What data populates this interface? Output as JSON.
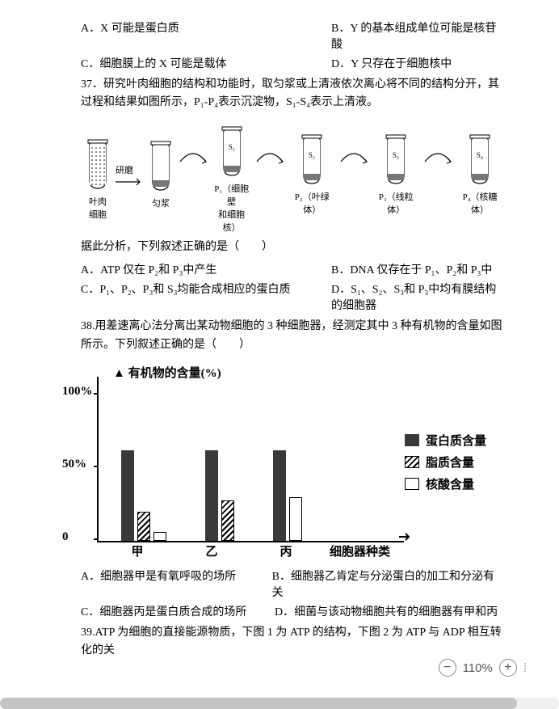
{
  "q36": {
    "optA": "A．X 可能是蛋白质",
    "optB": "B．Y 的基本组成单位可能是核苷酸",
    "optC": "C．细胞膜上的 X 可能是载体",
    "optD": "D．Y 只存在于细胞核中"
  },
  "q37": {
    "text": "37．研究叶肉细胞的结构和功能时，取匀浆或上清液依次离心将不同的结构分开，其过程和结果如图所示，P₁-P₄表示沉淀物，S₁-S₄表示上清液。",
    "diagram": {
      "tubes": [
        {
          "label1": "叶肉",
          "label2": "细胞",
          "s_label": ""
        },
        {
          "label1": "匀浆",
          "label2": "",
          "s_label": ""
        },
        {
          "label1": "P₁（细胞壁",
          "label2": "和细胞核）",
          "s_label": "S₁"
        },
        {
          "label1": "P₂（叶绿体）",
          "label2": "",
          "s_label": "S₂"
        },
        {
          "label1": "P₃（线粒体）",
          "label2": "",
          "s_label": "S₃"
        },
        {
          "label1": "P₄（核糖体）",
          "label2": "",
          "s_label": "S₄"
        }
      ],
      "step1": "研磨"
    },
    "stem2": "据此分析，下列叙述正确的是（　　）",
    "optA": "A．ATP 仅在 P₂和 P₃中产生",
    "optB": "B．DNA 仅存在于 P₁、P₂和 P₃中",
    "optC": "C．P₁、P₂、P₃和 S₃均能合成相应的蛋白质",
    "optD": "D．S₁、S₂、S₃和 P₃中均有膜结构的细胞器"
  },
  "q38": {
    "text": "38.用差速离心法分离出某动物细胞的 3 种细胞器，经测定其中 3 种有机物的含量如图所示。下列叙述正确的是（　　）",
    "chart": {
      "title": "有机物的含量(%)",
      "yticks": [
        {
          "v": 100,
          "label": "100%"
        },
        {
          "v": 50,
          "label": "50%"
        },
        {
          "v": 0,
          "label": "0"
        }
      ],
      "ymax": 100,
      "legend": {
        "protein": "蛋白质含量",
        "lipid": "脂质含量",
        "nucleic": "核酸含量"
      },
      "groups": [
        {
          "name": "甲",
          "protein": 62,
          "lipid": 20,
          "nucleic": 6
        },
        {
          "name": "乙",
          "protein": 62,
          "lipid": 28,
          "nucleic": 0
        },
        {
          "name": "丙",
          "protein": 62,
          "lipid": 0,
          "nucleic": 30
        }
      ],
      "xaxis_label": "细胞器种类",
      "colors": {
        "filled": "#3a3a3a",
        "empty": "#ffffff"
      }
    },
    "optA": "A．细胞器甲是有氧呼吸的场所",
    "optB": "B．细胞器乙肯定与分泌蛋白的加工和分泌有关",
    "optC": "C．细胞器丙是蛋白质合成的场所",
    "optD": "D．细菌与该动物细胞共有的细胞器有甲和丙"
  },
  "q39": {
    "text": "39.ATP 为细胞的直接能源物质，下图 1 为 ATP 的结构，下图 2 为 ATP 与 ADP 相互转化的关"
  },
  "zoom": {
    "level": "110%"
  }
}
